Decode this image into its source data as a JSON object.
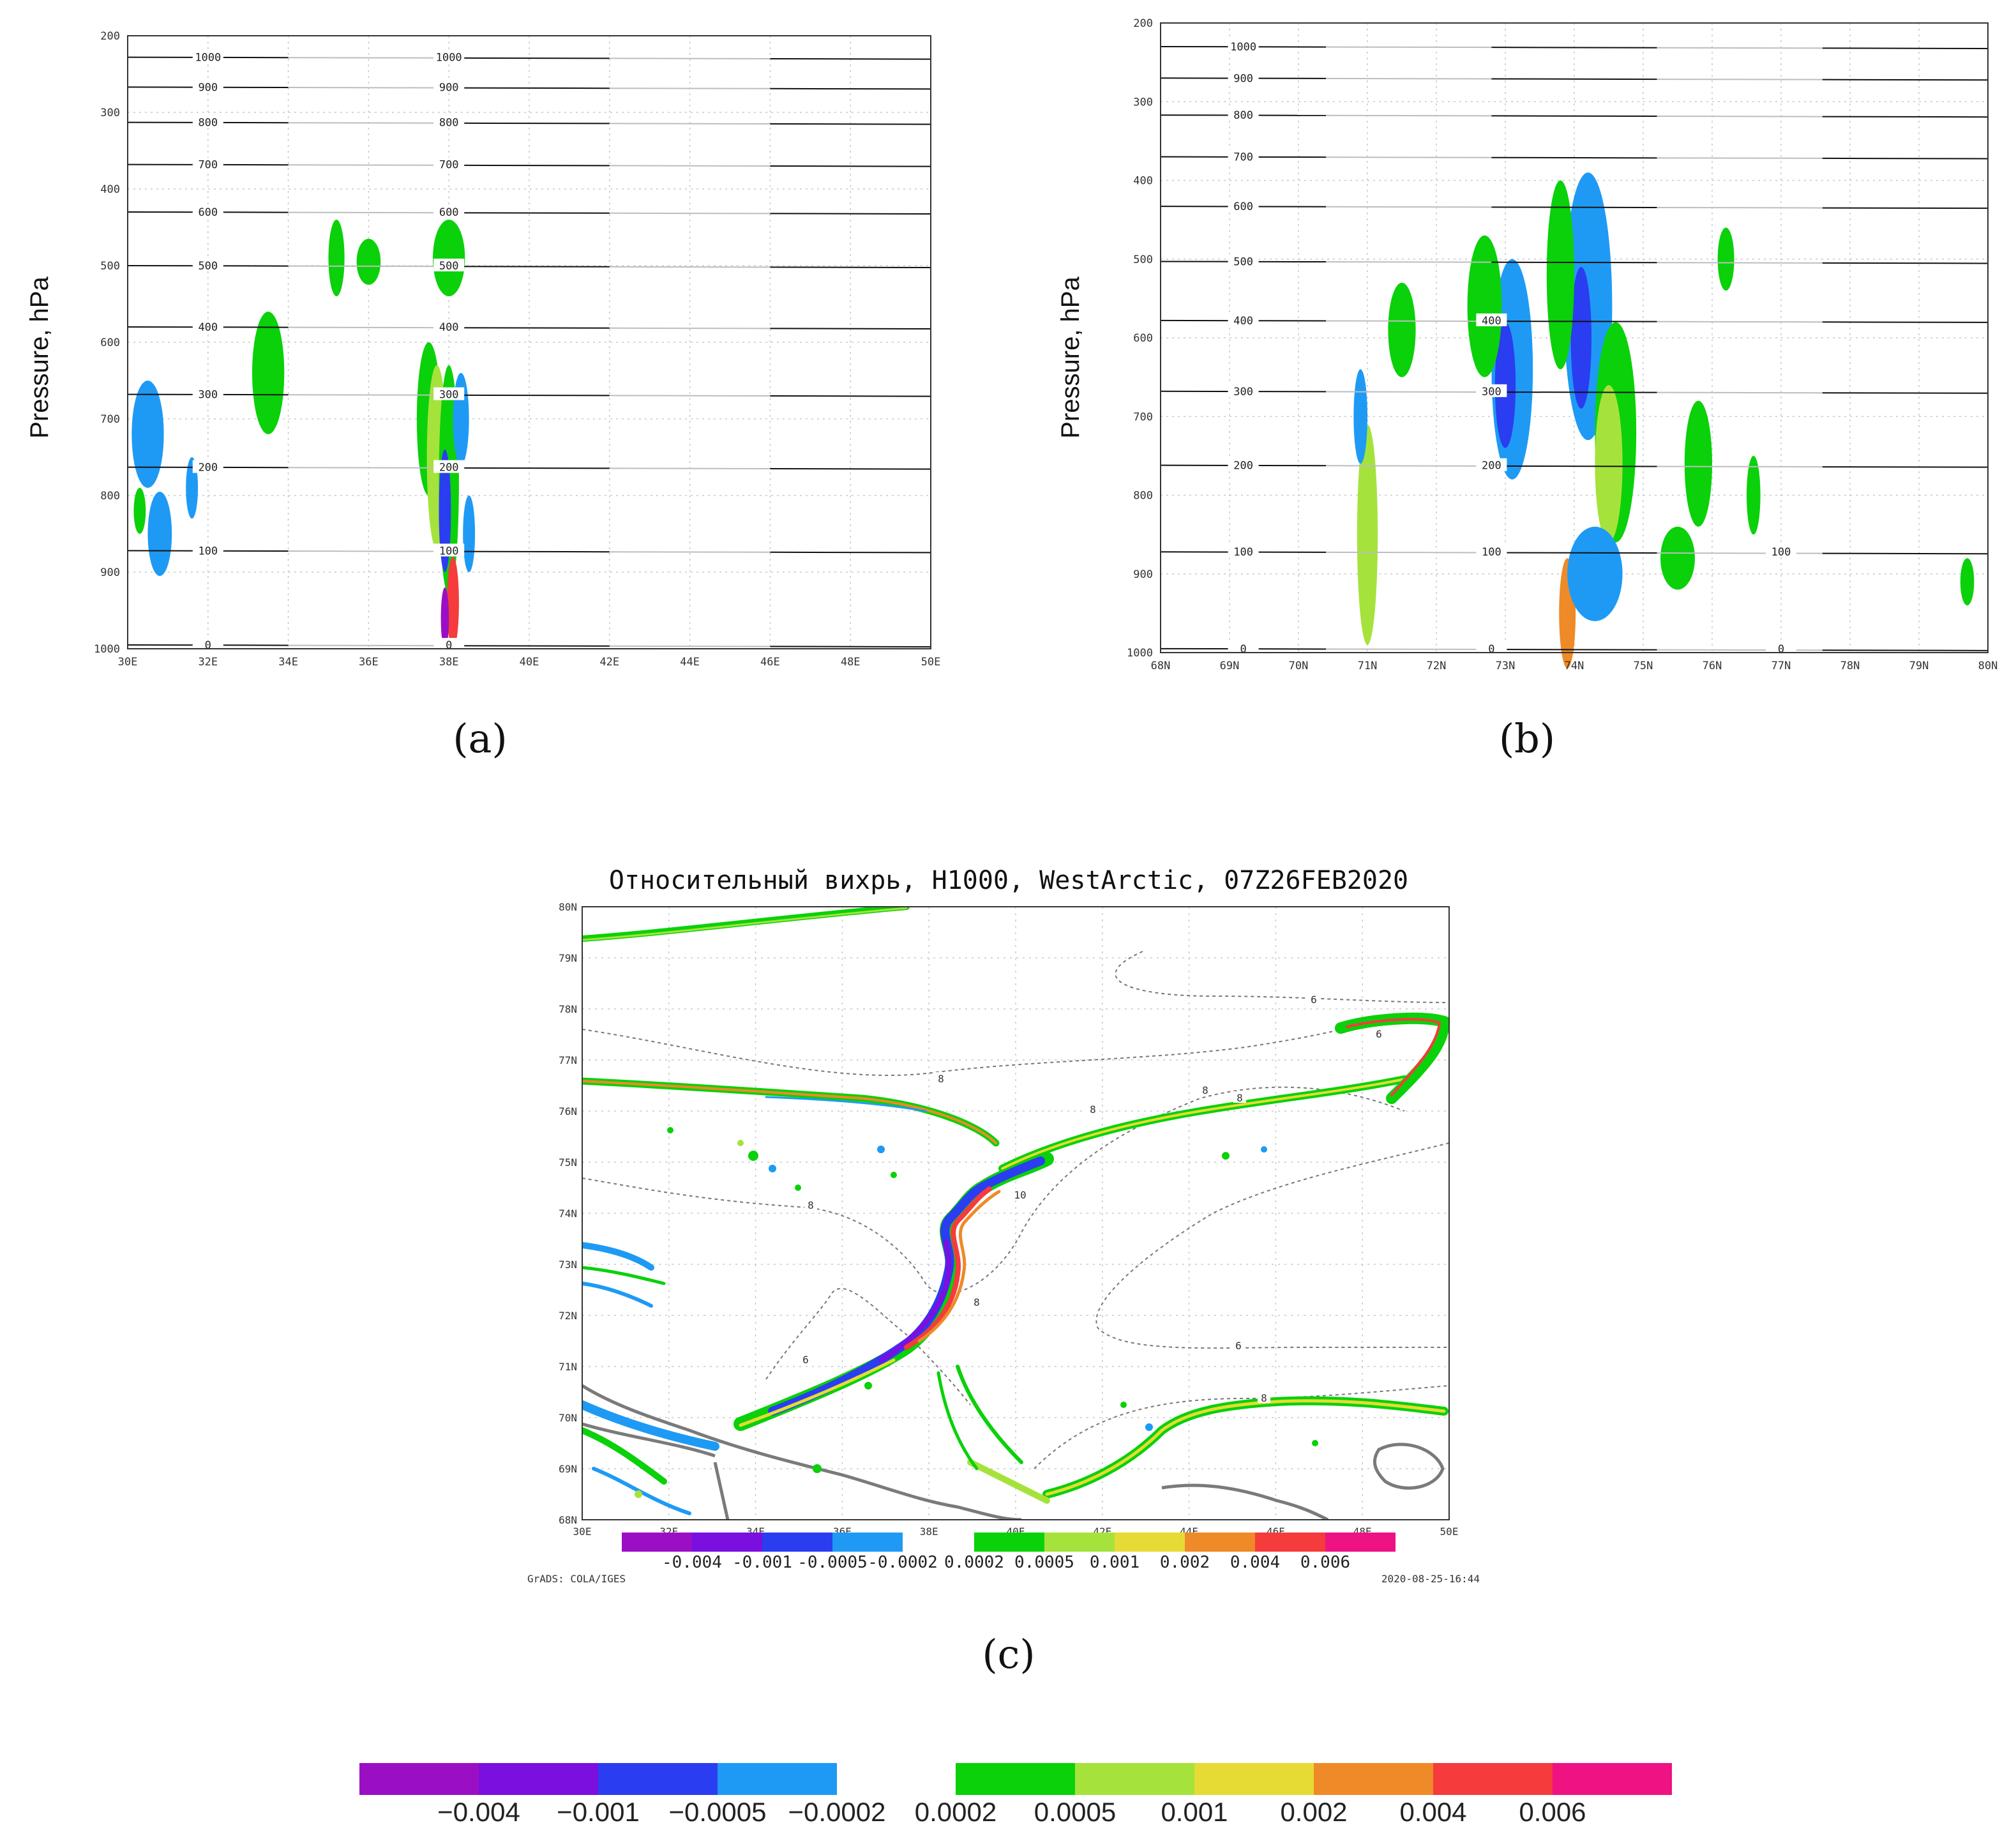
{
  "colors": {
    "neg": [
      "#9b0fc4",
      "#7a0fe0",
      "#2a3df0",
      "#1e9af5"
    ],
    "pos": [
      "#0ad10a",
      "#a5e33c",
      "#e6db35",
      "#ee8a28",
      "#f53b3b",
      "#ee1282"
    ],
    "contour_dark": "#111111",
    "contour_light": "#bdbdbd",
    "grid": "#c8c8c8"
  },
  "chart_data": [
    {
      "type": "contour",
      "panel_label": "(a)",
      "ylabel": "Pressure, hPa",
      "x_ticks": [
        "30E",
        "32E",
        "34E",
        "36E",
        "38E",
        "40E",
        "42E",
        "44E",
        "46E",
        "48E",
        "50E"
      ],
      "y_ticks": [
        "200",
        "300",
        "400",
        "500",
        "600",
        "700",
        "800",
        "900",
        "1000"
      ],
      "ylim": [
        1000,
        200
      ],
      "xlim": [
        30,
        50
      ],
      "contours": [
        {
          "p": 228,
          "labels": [
            "1000",
            "1000"
          ]
        },
        {
          "p": 267,
          "labels": [
            "900",
            "900"
          ]
        },
        {
          "p": 313,
          "labels": [
            "800",
            "800"
          ]
        },
        {
          "p": 368,
          "labels": [
            "700",
            "700"
          ]
        },
        {
          "p": 430,
          "labels": [
            "600",
            "600"
          ]
        },
        {
          "p": 500,
          "labels": [
            "500",
            "500"
          ]
        },
        {
          "p": 580,
          "labels": [
            "400",
            "400"
          ]
        },
        {
          "p": 668,
          "labels": [
            "300",
            "300"
          ]
        },
        {
          "p": 763,
          "labels": [
            "200",
            "200"
          ]
        },
        {
          "p": 872,
          "labels": [
            "100",
            "100"
          ]
        },
        {
          "p": 995,
          "labels": [
            "0",
            "0"
          ]
        }
      ],
      "blobs": [
        {
          "x": 30.5,
          "p": 720,
          "rx": 0.4,
          "rp": 70,
          "c": "neg3"
        },
        {
          "x": 30.8,
          "p": 850,
          "rx": 0.3,
          "rp": 55,
          "c": "neg3"
        },
        {
          "x": 31.6,
          "p": 790,
          "rx": 0.15,
          "rp": 40,
          "c": "neg3"
        },
        {
          "x": 30.3,
          "p": 820,
          "rx": 0.15,
          "rp": 30,
          "c": "pos0"
        },
        {
          "x": 33.5,
          "p": 640,
          "rx": 0.4,
          "rp": 80,
          "c": "pos0"
        },
        {
          "x": 35.2,
          "p": 490,
          "rx": 0.2,
          "rp": 50,
          "c": "pos0"
        },
        {
          "x": 36.0,
          "p": 495,
          "rx": 0.3,
          "rp": 30,
          "c": "pos0"
        },
        {
          "x": 38.0,
          "p": 490,
          "rx": 0.4,
          "rp": 50,
          "c": "pos0"
        },
        {
          "x": 37.5,
          "p": 700,
          "rx": 0.3,
          "rp": 100,
          "c": "pos0"
        },
        {
          "x": 37.7,
          "p": 750,
          "rx": 0.25,
          "rp": 120,
          "c": "pos1"
        },
        {
          "x": 38.0,
          "p": 780,
          "rx": 0.25,
          "rp": 150,
          "c": "pos0"
        },
        {
          "x": 37.9,
          "p": 820,
          "rx": 0.15,
          "rp": 80,
          "c": "neg2"
        },
        {
          "x": 38.3,
          "p": 700,
          "rx": 0.2,
          "rp": 60,
          "c": "neg3"
        },
        {
          "x": 38.1,
          "p": 940,
          "rx": 0.15,
          "rp": 60,
          "c": "pos4"
        },
        {
          "x": 37.9,
          "p": 960,
          "rx": 0.1,
          "rp": 40,
          "c": "neg0"
        },
        {
          "x": 38.5,
          "p": 850,
          "rx": 0.15,
          "rp": 50,
          "c": "neg3"
        }
      ]
    },
    {
      "type": "contour",
      "panel_label": "(b)",
      "ylabel": "Pressure, hPa",
      "x_ticks": [
        "68N",
        "69N",
        "70N",
        "71N",
        "72N",
        "73N",
        "74N",
        "75N",
        "76N",
        "77N",
        "78N",
        "79N",
        "80N"
      ],
      "y_ticks": [
        "200",
        "300",
        "400",
        "500",
        "600",
        "700",
        "800",
        "900",
        "1000"
      ],
      "ylim": [
        1000,
        200
      ],
      "xlim": [
        68,
        80
      ],
      "contours": [
        {
          "p": 230,
          "labels": [
            "1000"
          ]
        },
        {
          "p": 270,
          "labels": [
            "900"
          ]
        },
        {
          "p": 317,
          "labels": [
            "800"
          ]
        },
        {
          "p": 370,
          "labels": [
            "700"
          ]
        },
        {
          "p": 433,
          "labels": [
            "600"
          ]
        },
        {
          "p": 503,
          "labels": [
            "500"
          ]
        },
        {
          "p": 578,
          "labels": [
            "400",
            "400"
          ]
        },
        {
          "p": 668,
          "labels": [
            "300",
            "300"
          ]
        },
        {
          "p": 762,
          "labels": [
            "200",
            "200"
          ]
        },
        {
          "p": 872,
          "labels": [
            "100",
            "100",
            "100"
          ]
        },
        {
          "p": 995,
          "labels": [
            "0",
            "0",
            "0"
          ]
        }
      ],
      "blobs": [
        {
          "x": 71.5,
          "p": 590,
          "rx": 0.2,
          "rp": 60,
          "c": "pos0"
        },
        {
          "x": 71.0,
          "p": 850,
          "rx": 0.15,
          "rp": 140,
          "c": "pos1"
        },
        {
          "x": 70.9,
          "p": 700,
          "rx": 0.1,
          "rp": 60,
          "c": "neg3"
        },
        {
          "x": 73.1,
          "p": 640,
          "rx": 0.3,
          "rp": 140,
          "c": "neg3"
        },
        {
          "x": 73.0,
          "p": 660,
          "rx": 0.15,
          "rp": 80,
          "c": "neg2"
        },
        {
          "x": 72.7,
          "p": 560,
          "rx": 0.25,
          "rp": 90,
          "c": "pos0"
        },
        {
          "x": 74.2,
          "p": 560,
          "rx": 0.35,
          "rp": 170,
          "c": "neg3"
        },
        {
          "x": 74.1,
          "p": 600,
          "rx": 0.15,
          "rp": 90,
          "c": "neg2"
        },
        {
          "x": 74.6,
          "p": 720,
          "rx": 0.3,
          "rp": 140,
          "c": "pos0"
        },
        {
          "x": 74.5,
          "p": 760,
          "rx": 0.2,
          "rp": 100,
          "c": "pos1"
        },
        {
          "x": 73.8,
          "p": 520,
          "rx": 0.2,
          "rp": 120,
          "c": "pos0"
        },
        {
          "x": 73.9,
          "p": 950,
          "rx": 0.12,
          "rp": 70,
          "c": "pos3"
        },
        {
          "x": 74.3,
          "p": 900,
          "rx": 0.4,
          "rp": 60,
          "c": "neg3"
        },
        {
          "x": 75.8,
          "p": 760,
          "rx": 0.2,
          "rp": 80,
          "c": "pos0"
        },
        {
          "x": 76.6,
          "p": 800,
          "rx": 0.1,
          "rp": 50,
          "c": "pos0"
        },
        {
          "x": 75.5,
          "p": 880,
          "rx": 0.25,
          "rp": 40,
          "c": "pos0"
        },
        {
          "x": 79.7,
          "p": 910,
          "rx": 0.1,
          "rp": 30,
          "c": "pos0"
        },
        {
          "x": 76.2,
          "p": 500,
          "rx": 0.12,
          "rp": 40,
          "c": "pos0"
        }
      ]
    },
    {
      "type": "map",
      "panel_label": "(c)",
      "title": "Относительный вихрь, H1000, WestArctic, 07Z26FEB2020",
      "x_ticks": [
        "30E",
        "32E",
        "34E",
        "36E",
        "38E",
        "40E",
        "42E",
        "44E",
        "46E",
        "48E",
        "50E"
      ],
      "y_ticks": [
        "68N",
        "69N",
        "70N",
        "71N",
        "72N",
        "73N",
        "74N",
        "75N",
        "76N",
        "77N",
        "78N",
        "79N",
        "80N"
      ],
      "contour_labels": [
        "6",
        "8",
        "8",
        "8",
        "8",
        "10",
        "8",
        "6",
        "8",
        "6",
        "8",
        "6"
      ],
      "credit": "GrADS: COLA/IGES",
      "timestamp": "2020-08-25-16:44"
    }
  ],
  "colorbar_small_labels": [
    "-0.004",
    "-0.001",
    "-0.0005",
    "-0.0002",
    "0.0002",
    "0.0005",
    "0.001",
    "0.002",
    "0.004",
    "0.006"
  ],
  "colorbar_large_labels": [
    "−0.004",
    "−0.001",
    "−0.0005",
    "−0.0002",
    "0.0002",
    "0.0005",
    "0.001",
    "0.002",
    "0.004",
    "0.006"
  ]
}
